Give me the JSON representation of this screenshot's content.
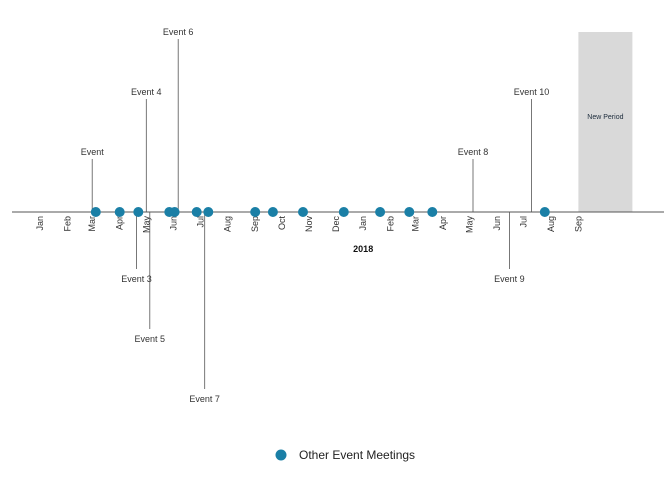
{
  "chart_data": {
    "type": "scatter",
    "title": "",
    "xlabel": "",
    "ylabel": "",
    "x_axis": {
      "start": "2017-01-01",
      "end": "2018-10-01",
      "tick_labels": [
        "Jan",
        "Feb",
        "Mar",
        "Apr",
        "May",
        "Jun",
        "Jul",
        "Aug",
        "Sep",
        "Oct",
        "Nov",
        "Dec",
        "Jan",
        "Feb",
        "Mar",
        "Apr",
        "May",
        "Jun",
        "Jul",
        "Aug",
        "Sep"
      ],
      "tick_dates": [
        "2017-01-01",
        "2017-02-01",
        "2017-03-01",
        "2017-04-01",
        "2017-05-01",
        "2017-06-01",
        "2017-07-01",
        "2017-08-01",
        "2017-09-01",
        "2017-10-01",
        "2017-11-01",
        "2017-12-01",
        "2018-01-01",
        "2018-02-01",
        "2018-03-01",
        "2018-04-01",
        "2018-05-01",
        "2018-06-01",
        "2018-07-01",
        "2018-08-01",
        "2018-09-01"
      ],
      "year_label": "2018",
      "year_label_date": "2018-01-01"
    },
    "period": {
      "label": "New Period",
      "start": "2018-09-01",
      "end": "2018-11-01",
      "color": "#d9d9d9"
    },
    "events": [
      {
        "label": "Event",
        "date": "2017-03-01",
        "height": 1
      },
      {
        "label": "Event 3",
        "date": "2017-04-20",
        "height": -1
      },
      {
        "label": "Event 4",
        "date": "2017-05-01",
        "height": 2
      },
      {
        "label": "Event 5",
        "date": "2017-05-05",
        "height": -2
      },
      {
        "label": "Event 6",
        "date": "2017-06-06",
        "height": 3
      },
      {
        "label": "Event 7",
        "date": "2017-07-06",
        "height": -3
      },
      {
        "label": "Event 8",
        "date": "2018-05-05",
        "height": 1
      },
      {
        "label": "Event 9",
        "date": "2018-06-15",
        "height": -1
      },
      {
        "label": "Event 10",
        "date": "2018-07-10",
        "height": 2
      }
    ],
    "series": [
      {
        "name": "Other Event Meetings",
        "color": "#1a7fa6",
        "dates": [
          "2017-03-05",
          "2017-04-01",
          "2017-04-22",
          "2017-05-27",
          "2017-06-02",
          "2017-06-27",
          "2017-07-10",
          "2017-09-01",
          "2017-09-21",
          "2017-10-25",
          "2017-12-10",
          "2018-01-20",
          "2018-02-22",
          "2018-03-20",
          "2018-07-25"
        ]
      }
    ],
    "legend_position": "bottom",
    "grid": false
  }
}
